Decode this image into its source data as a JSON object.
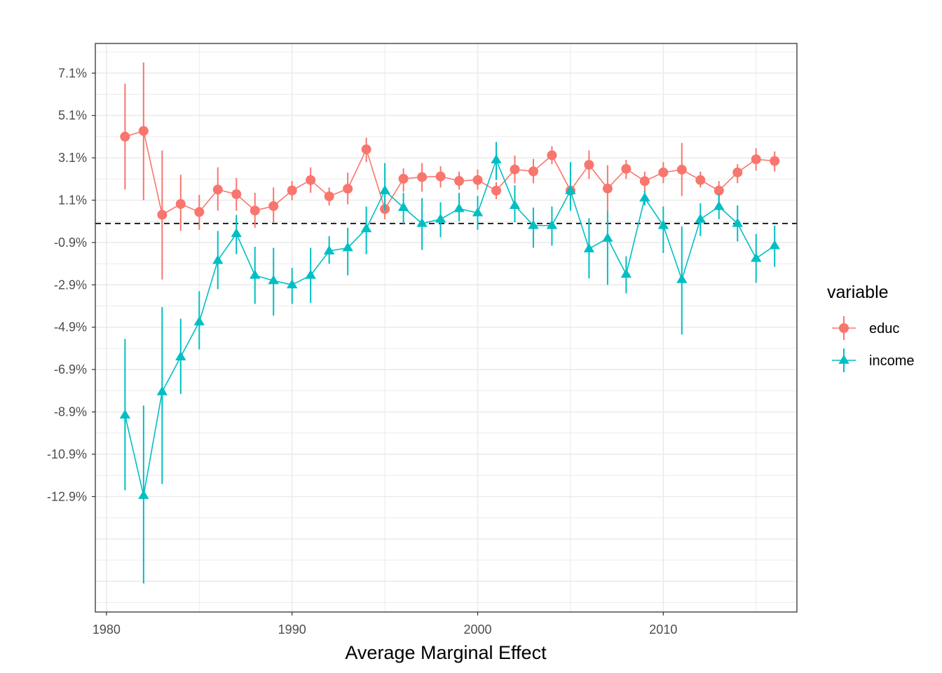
{
  "chart_data": {
    "type": "line",
    "title": "",
    "xlabel": "Average Marginal Effect",
    "ylabel": "",
    "xlim": [
      1979.4,
      2017.2
    ],
    "ylim": [
      -0.1835,
      0.085
    ],
    "x_ticks": [
      1980,
      1990,
      2000,
      2010
    ],
    "x_tick_labels": [
      "1980",
      "1990",
      "2000",
      "2010"
    ],
    "y_ticks": [
      0.071,
      0.051,
      0.031,
      0.011,
      -0.009,
      -0.029,
      -0.049,
      -0.069,
      -0.089,
      -0.109,
      -0.129
    ],
    "y_tick_labels": [
      "7.1%",
      "5.1%",
      "3.1%",
      "1.1%",
      "-0.9%",
      "-2.9%",
      "-4.9%",
      "-6.9%",
      "-8.9%",
      "-10.9%",
      "-12.9%"
    ],
    "reference_line": {
      "y": 0,
      "style": "dashed",
      "color": "#000000"
    },
    "grid": true,
    "legend": {
      "title": "variable",
      "position": "right"
    },
    "x": [
      1981,
      1982,
      1983,
      1984,
      1985,
      1986,
      1987,
      1988,
      1989,
      1990,
      1991,
      1992,
      1993,
      1994,
      1995,
      1996,
      1997,
      1998,
      1999,
      2000,
      2001,
      2002,
      2003,
      2004,
      2005,
      2006,
      2007,
      2008,
      2009,
      2010,
      2011,
      2012,
      2013,
      2014,
      2015,
      2016
    ],
    "series": [
      {
        "name": "educ",
        "color": "#F8766D",
        "marker": "circle",
        "values": [
          0.041,
          0.0437,
          0.0041,
          0.0092,
          0.0054,
          0.016,
          0.0138,
          0.0061,
          0.0082,
          0.0156,
          0.0205,
          0.0128,
          0.0164,
          0.035,
          0.0068,
          0.0211,
          0.0219,
          0.0222,
          0.0201,
          0.0205,
          0.0155,
          0.0255,
          0.0246,
          0.0322,
          0.0155,
          0.0277,
          0.0165,
          0.0258,
          0.02,
          0.0241,
          0.0254,
          0.0205,
          0.0155,
          0.0241,
          0.0303,
          0.0295
        ],
        "lower": [
          0.016,
          0.011,
          -0.0265,
          -0.0035,
          -0.003,
          0.006,
          0.006,
          -0.002,
          0.0005,
          0.011,
          0.0145,
          0.0085,
          0.009,
          0.029,
          0.002,
          0.015,
          0.015,
          0.017,
          0.016,
          0.016,
          0.0115,
          0.019,
          0.019,
          0.028,
          0.009,
          0.021,
          0.006,
          0.021,
          0.015,
          0.019,
          0.013,
          0.017,
          0.0105,
          0.019,
          0.025,
          0.0245
        ],
        "upper": [
          0.066,
          0.076,
          0.0345,
          0.023,
          0.0135,
          0.0265,
          0.0215,
          0.0145,
          0.017,
          0.02,
          0.0265,
          0.017,
          0.024,
          0.0405,
          0.0115,
          0.026,
          0.0285,
          0.027,
          0.0245,
          0.0255,
          0.0195,
          0.032,
          0.0305,
          0.0365,
          0.021,
          0.0345,
          0.0275,
          0.03,
          0.0245,
          0.029,
          0.038,
          0.0245,
          0.02,
          0.028,
          0.0355,
          0.034
        ]
      },
      {
        "name": "income",
        "color": "#00BFC4",
        "marker": "triangle",
        "values": [
          -0.0905,
          -0.1285,
          -0.0795,
          -0.063,
          -0.0465,
          -0.0175,
          -0.0048,
          -0.0245,
          -0.027,
          -0.029,
          -0.0245,
          -0.013,
          -0.0115,
          -0.0025,
          0.0155,
          0.0075,
          0.0,
          0.002,
          0.007,
          0.005,
          0.03,
          0.0085,
          -0.001,
          -0.001,
          0.0155,
          -0.012,
          -0.007,
          -0.024,
          0.012,
          -0.001,
          -0.0265,
          0.002,
          0.008,
          0.0,
          -0.0165,
          -0.0105
        ],
        "lower": [
          -0.126,
          -0.17,
          -0.123,
          -0.0805,
          -0.0595,
          -0.031,
          -0.0145,
          -0.038,
          -0.0435,
          -0.038,
          -0.0375,
          -0.019,
          -0.0245,
          -0.0145,
          0.006,
          0.0,
          -0.0125,
          -0.0065,
          0.001,
          -0.003,
          0.0205,
          0.0005,
          -0.0115,
          -0.0105,
          0.006,
          -0.026,
          -0.029,
          -0.033,
          0.0085,
          -0.014,
          -0.0525,
          -0.006,
          0.002,
          -0.0085,
          -0.028,
          -0.0205
        ],
        "upper": [
          -0.0545,
          -0.086,
          -0.0395,
          -0.045,
          -0.032,
          -0.0035,
          0.004,
          -0.011,
          -0.0115,
          -0.021,
          -0.0115,
          -0.006,
          -0.002,
          0.008,
          0.0285,
          0.0145,
          0.012,
          0.01,
          0.0145,
          0.013,
          0.0385,
          0.018,
          0.0075,
          0.008,
          0.029,
          0.0025,
          0.006,
          -0.0155,
          0.0155,
          0.008,
          -0.0015,
          0.0095,
          0.014,
          0.0085,
          -0.005,
          -0.001
        ]
      }
    ]
  }
}
